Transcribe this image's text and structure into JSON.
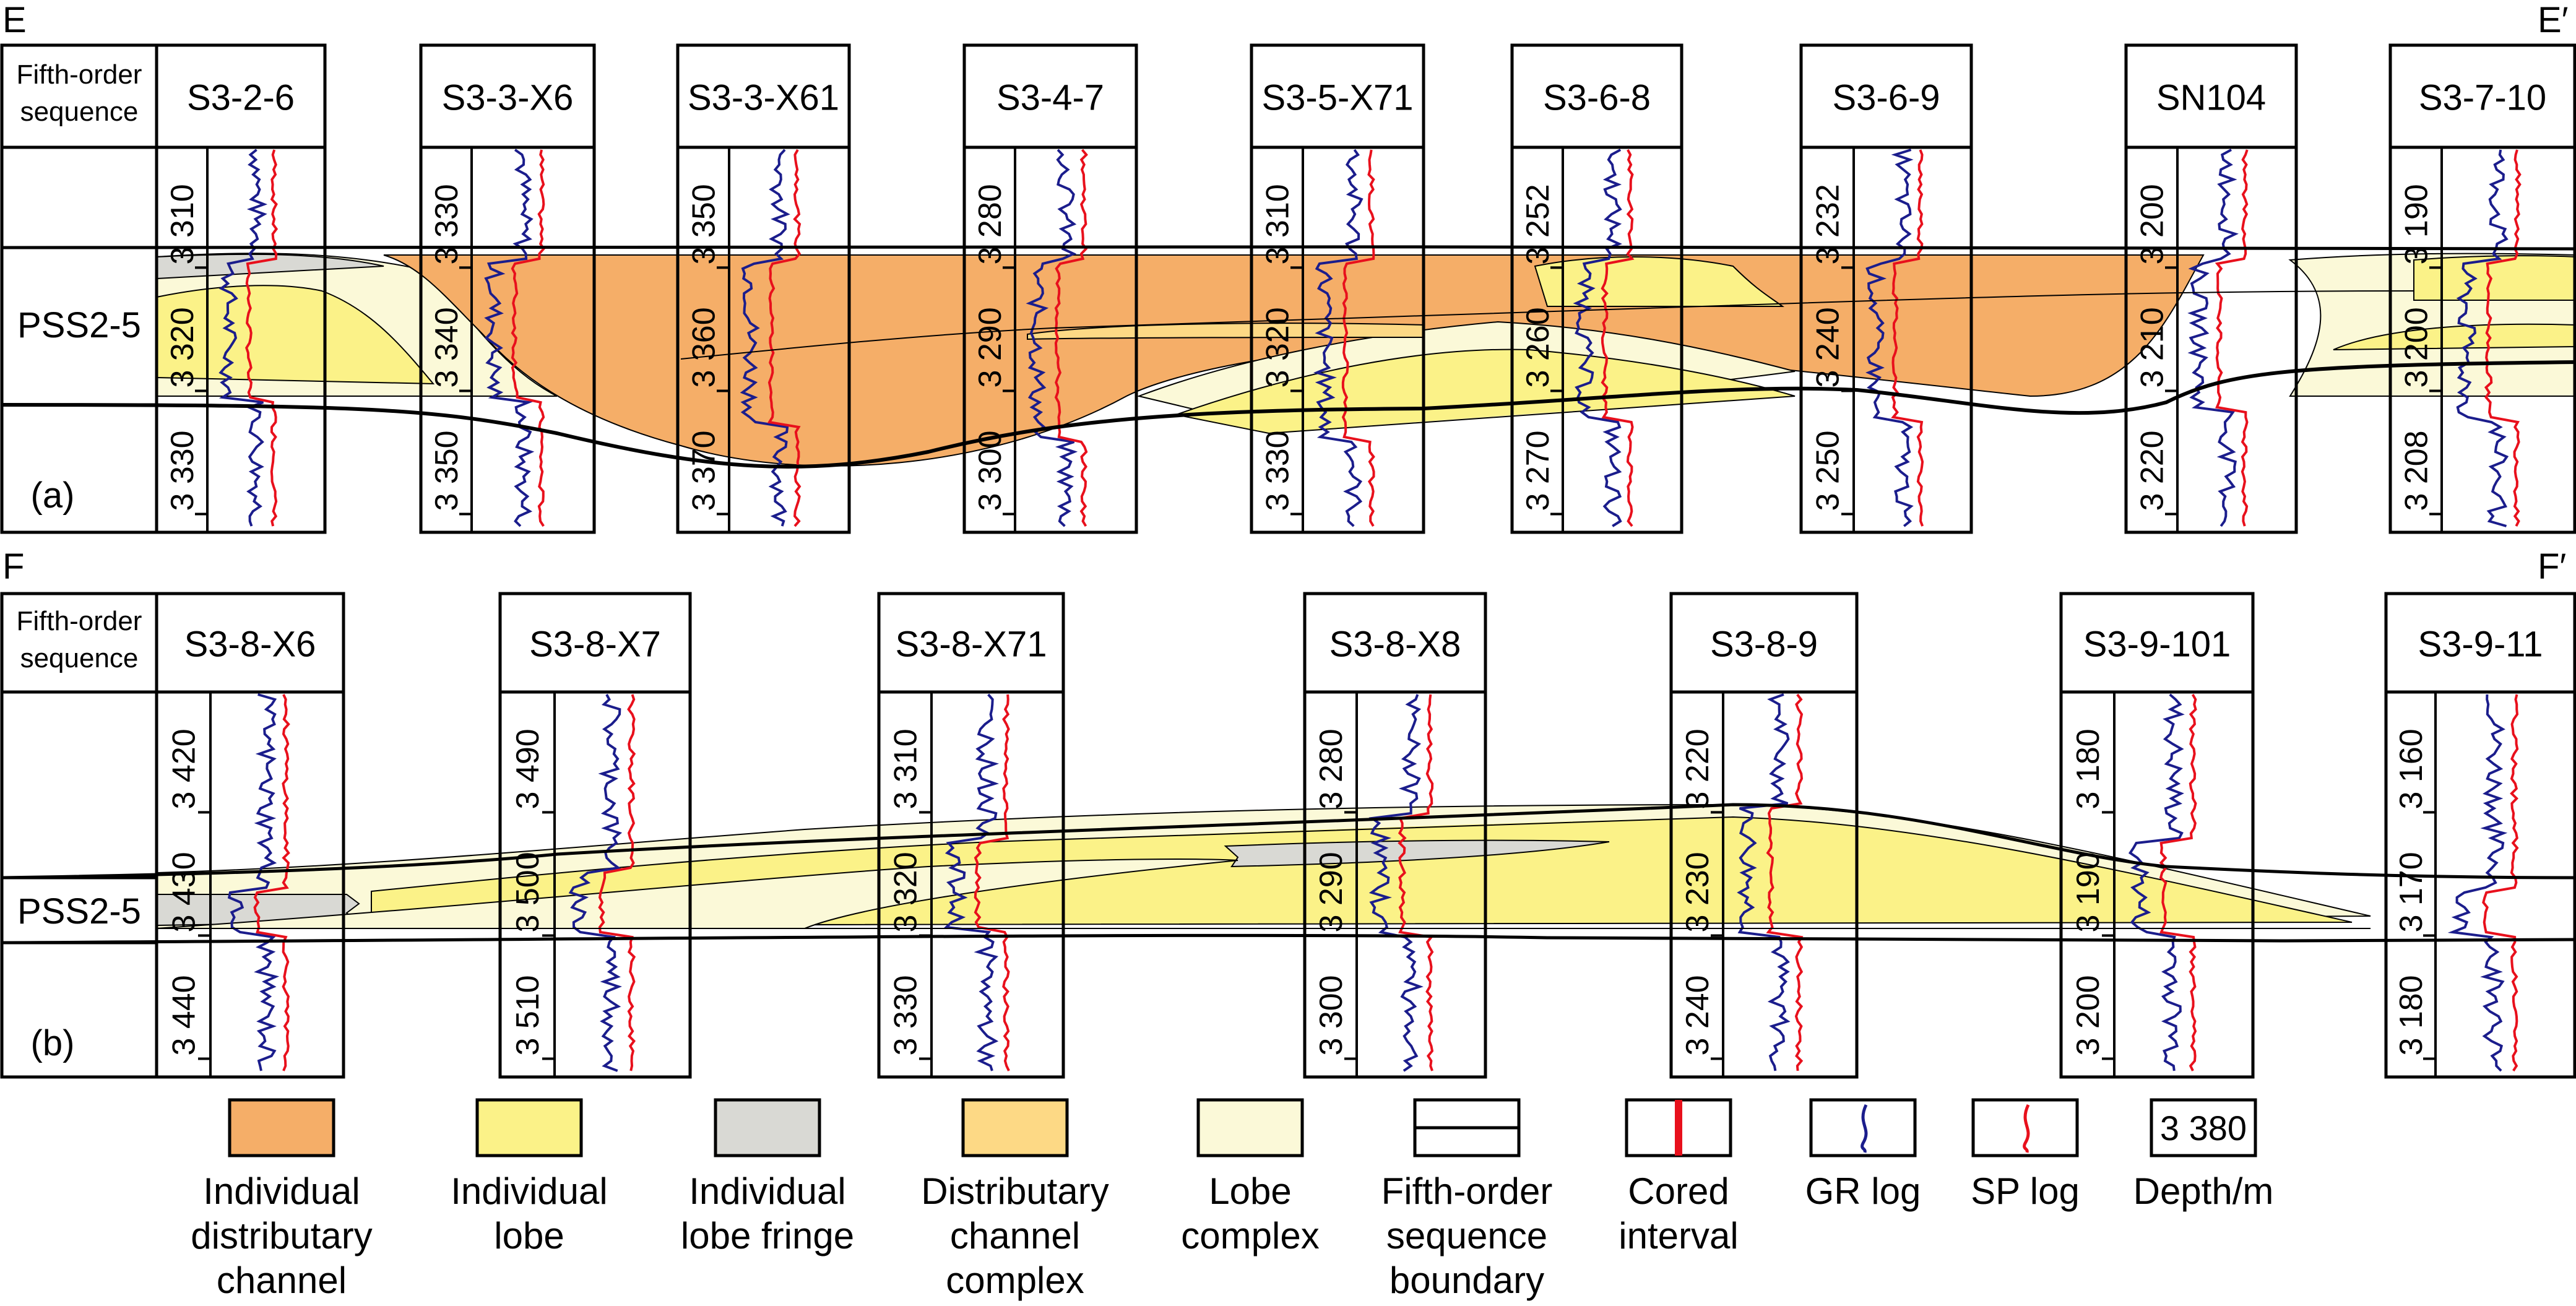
{
  "colors": {
    "individual_distributary_channel": "#F5AE68",
    "individual_lobe": "#FBF288",
    "individual_lobe_fringe": "#D9D9D4",
    "distributary_channel_complex": "#FDD985",
    "lobe_complex": "#FBF9D8",
    "gr_log": "#1B1D8C",
    "sp_log": "#E8101C",
    "boundary": "#000000"
  },
  "panels": [
    {
      "id": "a",
      "label": "(a)",
      "start_marker": "E",
      "end_marker": "E′",
      "sequence_header": [
        "Fifth-order",
        "sequence"
      ],
      "sequence_name": "PSS2-5",
      "wells": [
        {
          "name": "S3-2-6",
          "depths": [
            "3 310",
            "3 320",
            "3 330"
          ],
          "partial_depths": [
            "3",
            "3",
            "3"
          ]
        },
        {
          "name": "S3-3-X6",
          "depths": [
            "3 330",
            "3 340",
            "3 350"
          ],
          "partial_depths": []
        },
        {
          "name": "S3-3-X61",
          "depths": [
            "3 350",
            "3 360",
            "3 370"
          ],
          "partial_depths": [
            "3",
            "3"
          ]
        },
        {
          "name": "S3-4-7",
          "depths": [
            "3 280",
            "3 290",
            "3 300"
          ],
          "partial_depths": []
        },
        {
          "name": "S3-5-X71",
          "depths": [
            "3 310",
            "3 320",
            "3 330"
          ],
          "partial_depths": [
            "3",
            "3",
            "3"
          ]
        },
        {
          "name": "S3-6-8",
          "depths": [
            "3 252",
            "3 260",
            "3 270"
          ],
          "partial_depths": []
        },
        {
          "name": "S3-6-9",
          "depths": [
            "3 232",
            "3 240",
            "3 250"
          ],
          "partial_depths": []
        },
        {
          "name": "SN104",
          "depths": [
            "3 200",
            "3 210",
            "3 220"
          ],
          "partial_depths": []
        },
        {
          "name": "S3-7-10",
          "depths": [
            "3 190",
            "3 200",
            "3 208"
          ],
          "partial_depths": [
            "3"
          ]
        }
      ]
    },
    {
      "id": "b",
      "label": "(b)",
      "start_marker": "F",
      "end_marker": "F′",
      "sequence_header": [
        "Fifth-order",
        "sequence"
      ],
      "sequence_name": "PSS2-5",
      "wells": [
        {
          "name": "S3-8-X6",
          "depths": [
            "3 420",
            "3 430",
            "3 440"
          ],
          "partial_depths": [
            "3"
          ]
        },
        {
          "name": "S3-8-X7",
          "depths": [
            "3 490",
            "3 500",
            "3 510"
          ],
          "partial_depths": []
        },
        {
          "name": "S3-8-X71",
          "depths": [
            "3 310",
            "3 320",
            "3 330"
          ],
          "partial_depths": []
        },
        {
          "name": "S3-8-X8",
          "depths": [
            "3 280",
            "3 290",
            "3 300"
          ],
          "partial_depths": [
            "3"
          ]
        },
        {
          "name": "S3-8-9",
          "depths": [
            "3 220",
            "3 230",
            "3 240"
          ],
          "partial_depths": []
        },
        {
          "name": "S3-9-101",
          "depths": [
            "3 180",
            "3 190",
            "3 200"
          ],
          "partial_depths": []
        },
        {
          "name": "S3-9-11",
          "depths": [
            "3 160",
            "3 170",
            "3 180"
          ],
          "partial_depths": []
        }
      ]
    }
  ],
  "legend": [
    {
      "key": "individual_distributary_channel",
      "lines": [
        "Individual",
        "distributary",
        "channel"
      ],
      "symbol": "fill"
    },
    {
      "key": "individual_lobe",
      "lines": [
        "Individual",
        "lobe"
      ],
      "symbol": "fill"
    },
    {
      "key": "individual_lobe_fringe",
      "lines": [
        "Individual",
        "lobe fringe"
      ],
      "symbol": "fill"
    },
    {
      "key": "distributary_channel_complex",
      "lines": [
        "Distributary",
        "channel",
        "complex"
      ],
      "symbol": "fill"
    },
    {
      "key": "lobe_complex",
      "lines": [
        "Lobe",
        "complex"
      ],
      "symbol": "fill"
    },
    {
      "key": "fifth_order_boundary",
      "lines": [
        "Fifth-order",
        "sequence",
        "boundary"
      ],
      "symbol": "boundary"
    },
    {
      "key": "cored_interval",
      "lines": [
        "Cored",
        "interval"
      ],
      "symbol": "core"
    },
    {
      "key": "gr_log",
      "lines": [
        "GR log"
      ],
      "symbol": "gr"
    },
    {
      "key": "sp_log",
      "lines": [
        "SP log"
      ],
      "symbol": "sp"
    },
    {
      "key": "depth",
      "lines": [
        "Depth/m"
      ],
      "symbol": "depth",
      "sample": "3 380"
    }
  ]
}
